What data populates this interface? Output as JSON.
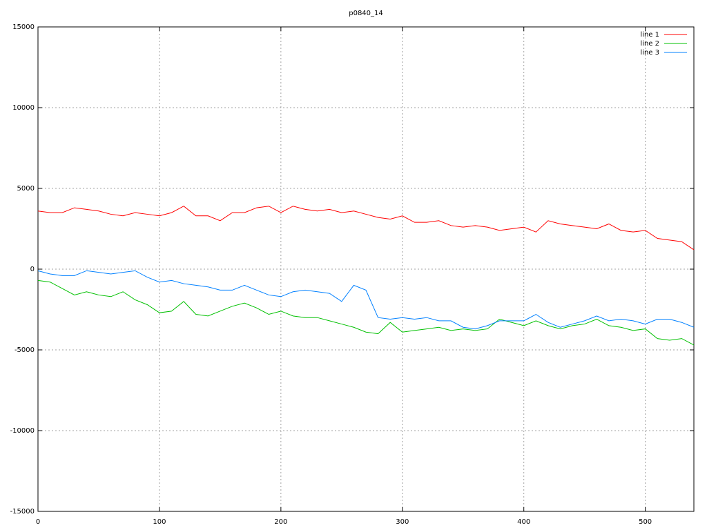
{
  "chart_data": {
    "type": "line",
    "title": "p0840_14",
    "x": [
      0,
      10,
      20,
      30,
      40,
      50,
      60,
      70,
      80,
      90,
      100,
      110,
      120,
      130,
      140,
      150,
      160,
      170,
      180,
      190,
      200,
      210,
      220,
      230,
      240,
      250,
      260,
      270,
      280,
      290,
      300,
      310,
      320,
      330,
      340,
      350,
      360,
      370,
      380,
      390,
      400,
      410,
      420,
      430,
      440,
      450,
      460,
      470,
      480,
      490,
      500,
      510,
      520,
      530,
      540
    ],
    "series": [
      {
        "name": "line 1",
        "color": "#ff0000",
        "values": [
          3600,
          3500,
          3500,
          3800,
          3700,
          3600,
          3400,
          3300,
          3500,
          3400,
          3300,
          3500,
          3900,
          3300,
          3300,
          3000,
          3500,
          3500,
          3800,
          3900,
          3500,
          3900,
          3700,
          3600,
          3700,
          3500,
          3600,
          3400,
          3200,
          3100,
          3300,
          2900,
          2900,
          3000,
          2700,
          2600,
          2700,
          2600,
          2400,
          2500,
          2600,
          2300,
          3000,
          2800,
          2700,
          2600,
          2500,
          2800,
          2400,
          2300,
          2400,
          1900,
          1800,
          1700,
          1200
        ]
      },
      {
        "name": "line 2",
        "color": "#00c000",
        "values": [
          -700,
          -800,
          -1200,
          -1600,
          -1400,
          -1600,
          -1700,
          -1400,
          -1900,
          -2200,
          -2700,
          -2600,
          -2000,
          -2800,
          -2900,
          -2600,
          -2300,
          -2100,
          -2400,
          -2800,
          -2600,
          -2900,
          -3000,
          -3000,
          -3200,
          -3400,
          -3600,
          -3900,
          -4000,
          -3300,
          -3900,
          -3800,
          -3700,
          -3600,
          -3800,
          -3700,
          -3800,
          -3700,
          -3100,
          -3300,
          -3500,
          -3200,
          -3500,
          -3700,
          -3500,
          -3400,
          -3100,
          -3500,
          -3600,
          -3800,
          -3700,
          -4300,
          -4400,
          -4300,
          -4700
        ]
      },
      {
        "name": "line 3",
        "color": "#0080ff",
        "values": [
          -100,
          -300,
          -400,
          -400,
          -100,
          -200,
          -300,
          -200,
          -100,
          -500,
          -800,
          -700,
          -900,
          -1000,
          -1100,
          -1300,
          -1300,
          -1000,
          -1300,
          -1600,
          -1700,
          -1400,
          -1300,
          -1400,
          -1500,
          -2000,
          -1000,
          -1300,
          -3000,
          -3100,
          -3000,
          -3100,
          -3000,
          -3200,
          -3200,
          -3600,
          -3700,
          -3500,
          -3200,
          -3200,
          -3200,
          -2800,
          -3300,
          -3600,
          -3400,
          -3200,
          -2900,
          -3200,
          -3100,
          -3200,
          -3400,
          -3100,
          -3100,
          -3300,
          -3600
        ]
      }
    ],
    "xlim": [
      0,
      540
    ],
    "xticks": [
      0,
      100,
      200,
      300,
      400,
      500
    ],
    "ylim": [
      -15000,
      15000
    ],
    "yticks": [
      -15000,
      -10000,
      -5000,
      0,
      5000,
      10000,
      15000
    ],
    "grid": true,
    "legend": "top-right"
  }
}
